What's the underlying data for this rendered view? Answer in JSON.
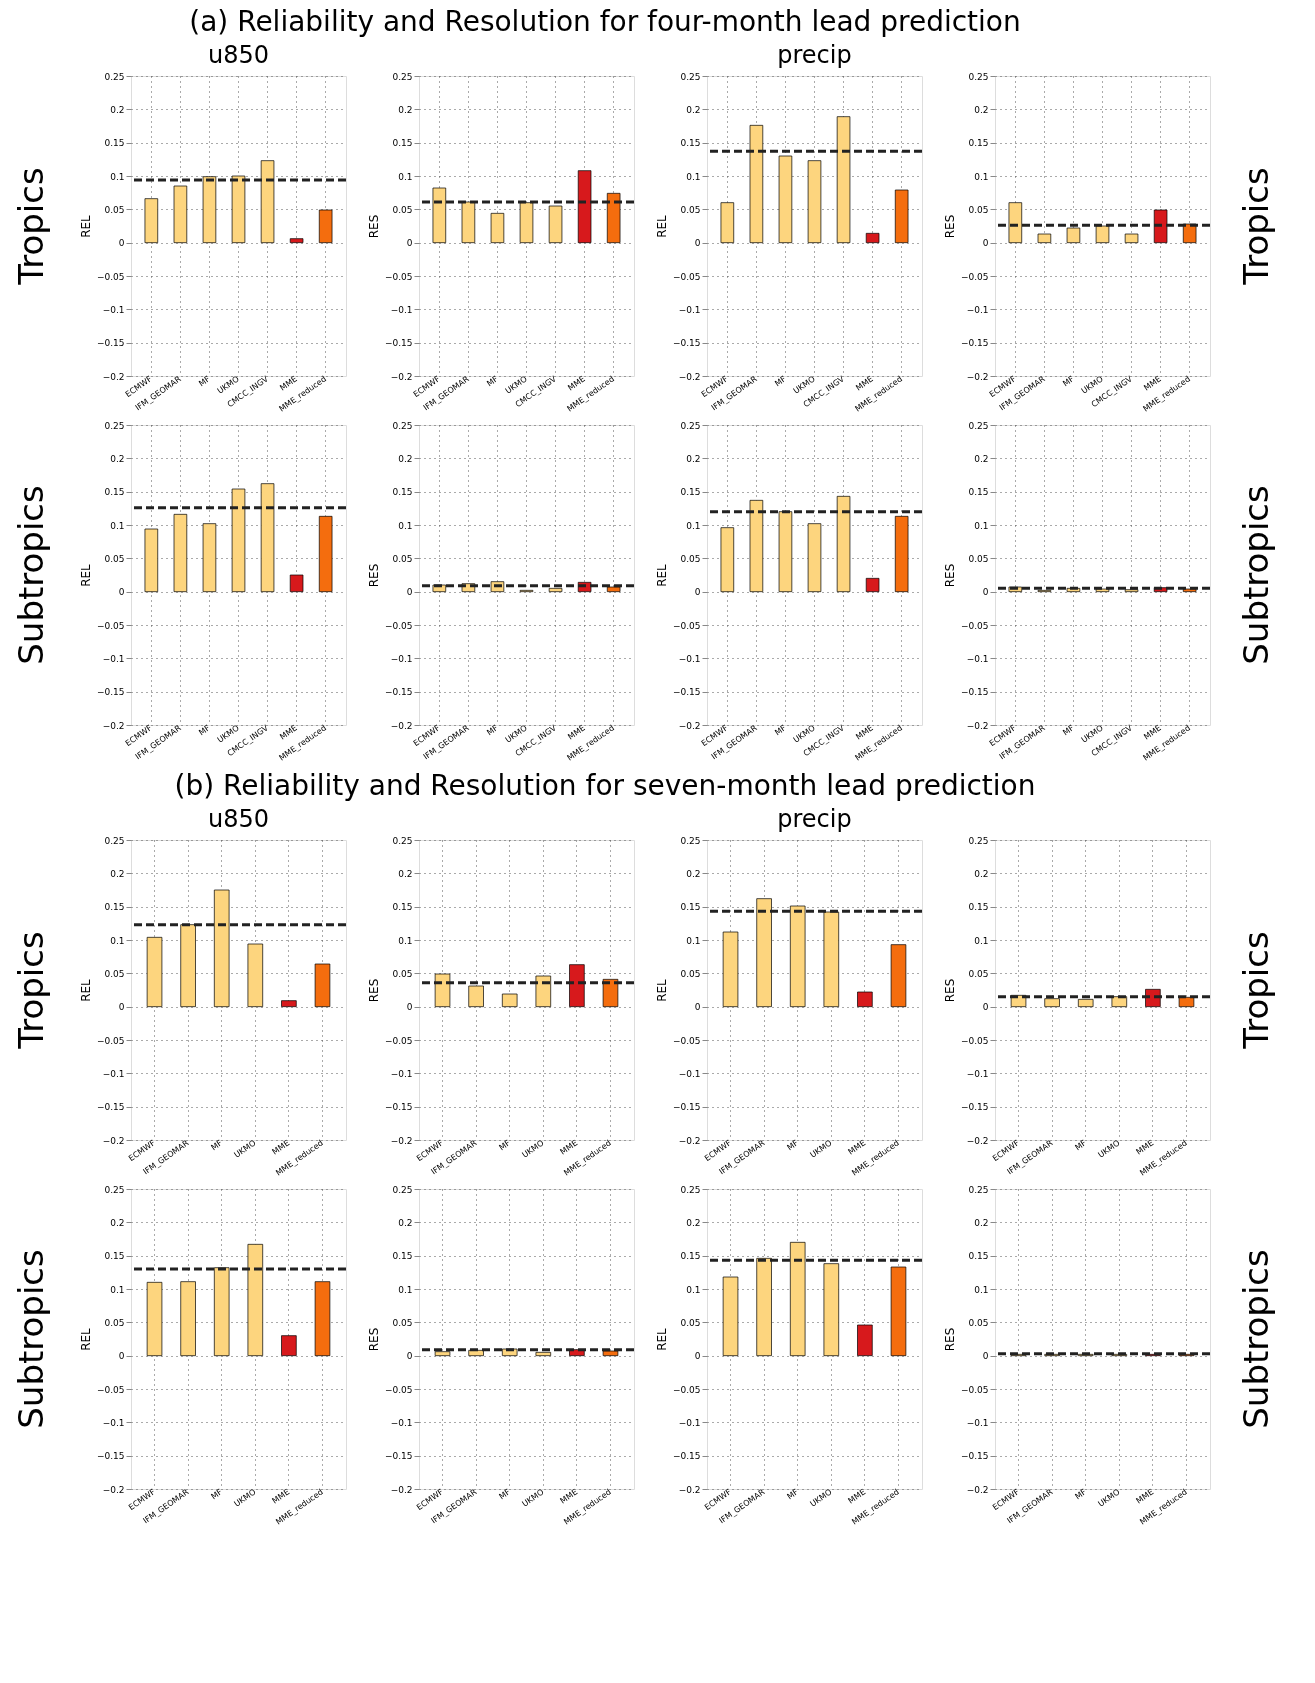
{
  "chart_data": [
    {
      "type": "bar",
      "title": "u850",
      "annotations": [
        "(a) Reliability and Resolution for four-month lead prediction",
        "Tropics"
      ],
      "ylabel": "REL",
      "categories": [
        "ECMWF",
        "IFM_GEOMAR",
        "MF",
        "UKMO",
        "CMCC_INGV",
        "MME",
        "MME_reduced"
      ],
      "values": [
        0.066,
        0.085,
        0.099,
        0.1,
        0.123,
        0.006,
        0.049
      ],
      "colors": [
        "#fdd57e",
        "#fdd57e",
        "#fdd57e",
        "#fdd57e",
        "#fdd57e",
        "#d7191c",
        "#f46d0e"
      ],
      "ylim": [
        -0.2,
        0.25
      ],
      "yticks": [
        -0.2,
        -0.15,
        -0.1,
        -0.05,
        0,
        0.05,
        0.1,
        0.15,
        0.2,
        0.25
      ],
      "grid": true,
      "ref_lines": [
        {
          "axis": "y",
          "value": 0.094,
          "color": "#222222",
          "line_style": "dashed"
        }
      ]
    },
    {
      "type": "bar",
      "ylabel": "RES",
      "categories": [
        "ECMWF",
        "IFM_GEOMAR",
        "MF",
        "UKMO",
        "CMCC_INGV",
        "MME",
        "MME_reduced"
      ],
      "values": [
        0.082,
        0.061,
        0.044,
        0.06,
        0.055,
        0.108,
        0.074
      ],
      "colors": [
        "#fdd57e",
        "#fdd57e",
        "#fdd57e",
        "#fdd57e",
        "#fdd57e",
        "#d7191c",
        "#f46d0e"
      ],
      "ylim": [
        -0.2,
        0.25
      ],
      "yticks": [
        -0.2,
        -0.15,
        -0.1,
        -0.05,
        0,
        0.05,
        0.1,
        0.15,
        0.2,
        0.25
      ],
      "grid": true,
      "ref_lines": [
        {
          "axis": "y",
          "value": 0.061,
          "color": "#222222",
          "line_style": "dashed"
        }
      ]
    },
    {
      "type": "bar",
      "title": "precip",
      "ylabel": "REL",
      "categories": [
        "ECMWF",
        "IFM_GEOMAR",
        "MF",
        "UKMO",
        "CMCC_INGV",
        "MME",
        "MME_reduced"
      ],
      "values": [
        0.06,
        0.176,
        0.13,
        0.123,
        0.189,
        0.014,
        0.079
      ],
      "colors": [
        "#fdd57e",
        "#fdd57e",
        "#fdd57e",
        "#fdd57e",
        "#fdd57e",
        "#d7191c",
        "#f46d0e"
      ],
      "ylim": [
        -0.2,
        0.25
      ],
      "yticks": [
        -0.2,
        -0.15,
        -0.1,
        -0.05,
        0,
        0.05,
        0.1,
        0.15,
        0.2,
        0.25
      ],
      "grid": true,
      "ref_lines": [
        {
          "axis": "y",
          "value": 0.137,
          "color": "#222222",
          "line_style": "dashed"
        }
      ]
    },
    {
      "type": "bar",
      "annotations": [
        "Tropics"
      ],
      "ylabel": "RES",
      "categories": [
        "ECMWF",
        "IFM_GEOMAR",
        "MF",
        "UKMO",
        "CMCC_INGV",
        "MME",
        "MME_reduced"
      ],
      "values": [
        0.06,
        0.013,
        0.022,
        0.025,
        0.013,
        0.049,
        0.028
      ],
      "colors": [
        "#fdd57e",
        "#fdd57e",
        "#fdd57e",
        "#fdd57e",
        "#fdd57e",
        "#d7191c",
        "#f46d0e"
      ],
      "ylim": [
        -0.2,
        0.25
      ],
      "yticks": [
        -0.2,
        -0.15,
        -0.1,
        -0.05,
        0,
        0.05,
        0.1,
        0.15,
        0.2,
        0.25
      ],
      "grid": true,
      "ref_lines": [
        {
          "axis": "y",
          "value": 0.026,
          "color": "#222222",
          "line_style": "dashed"
        }
      ]
    },
    {
      "type": "bar",
      "annotations": [
        "Subtropics"
      ],
      "ylabel": "REL",
      "categories": [
        "ECMWF",
        "IFM_GEOMAR",
        "MF",
        "UKMO",
        "CMCC_INGV",
        "MME",
        "MME_reduced"
      ],
      "values": [
        0.094,
        0.116,
        0.102,
        0.154,
        0.162,
        0.025,
        0.113
      ],
      "colors": [
        "#fdd57e",
        "#fdd57e",
        "#fdd57e",
        "#fdd57e",
        "#fdd57e",
        "#d7191c",
        "#f46d0e"
      ],
      "ylim": [
        -0.2,
        0.25
      ],
      "yticks": [
        -0.2,
        -0.15,
        -0.1,
        -0.05,
        0,
        0.05,
        0.1,
        0.15,
        0.2,
        0.25
      ],
      "grid": true,
      "ref_lines": [
        {
          "axis": "y",
          "value": 0.126,
          "color": "#222222",
          "line_style": "dashed"
        }
      ]
    },
    {
      "type": "bar",
      "ylabel": "RES",
      "categories": [
        "ECMWF",
        "IFM_GEOMAR",
        "MF",
        "UKMO",
        "CMCC_INGV",
        "MME",
        "MME_reduced"
      ],
      "values": [
        0.01,
        0.012,
        0.015,
        0.002,
        0.005,
        0.014,
        0.007
      ],
      "colors": [
        "#fdd57e",
        "#fdd57e",
        "#fdd57e",
        "#fdd57e",
        "#fdd57e",
        "#d7191c",
        "#f46d0e"
      ],
      "ylim": [
        -0.2,
        0.25
      ],
      "yticks": [
        -0.2,
        -0.15,
        -0.1,
        -0.05,
        0,
        0.05,
        0.1,
        0.15,
        0.2,
        0.25
      ],
      "grid": true,
      "ref_lines": [
        {
          "axis": "y",
          "value": 0.009,
          "color": "#222222",
          "line_style": "dashed"
        }
      ]
    },
    {
      "type": "bar",
      "ylabel": "REL",
      "categories": [
        "ECMWF",
        "IFM_GEOMAR",
        "MF",
        "UKMO",
        "CMCC_INGV",
        "MME",
        "MME_reduced"
      ],
      "values": [
        0.096,
        0.137,
        0.12,
        0.102,
        0.143,
        0.02,
        0.113
      ],
      "colors": [
        "#fdd57e",
        "#fdd57e",
        "#fdd57e",
        "#fdd57e",
        "#fdd57e",
        "#d7191c",
        "#f46d0e"
      ],
      "ylim": [
        -0.2,
        0.25
      ],
      "yticks": [
        -0.2,
        -0.15,
        -0.1,
        -0.05,
        0,
        0.05,
        0.1,
        0.15,
        0.2,
        0.25
      ],
      "grid": true,
      "ref_lines": [
        {
          "axis": "y",
          "value": 0.12,
          "color": "#222222",
          "line_style": "dashed"
        }
      ]
    },
    {
      "type": "bar",
      "annotations": [
        "Subtropics"
      ],
      "ylabel": "RES",
      "categories": [
        "ECMWF",
        "IFM_GEOMAR",
        "MF",
        "UKMO",
        "CMCC_INGV",
        "MME",
        "MME_reduced"
      ],
      "values": [
        0.007,
        0.002,
        0.005,
        0.004,
        0.003,
        0.006,
        0.004
      ],
      "colors": [
        "#fdd57e",
        "#fdd57e",
        "#fdd57e",
        "#fdd57e",
        "#fdd57e",
        "#d7191c",
        "#f46d0e"
      ],
      "ylim": [
        -0.2,
        0.25
      ],
      "yticks": [
        -0.2,
        -0.15,
        -0.1,
        -0.05,
        0,
        0.05,
        0.1,
        0.15,
        0.2,
        0.25
      ],
      "grid": true,
      "ref_lines": [
        {
          "axis": "y",
          "value": 0.005,
          "color": "#222222",
          "line_style": "dashed"
        }
      ]
    },
    {
      "type": "bar",
      "title": "u850",
      "annotations": [
        "(b) Reliability and Resolution for seven-month lead prediction",
        "Tropics"
      ],
      "ylabel": "REL",
      "categories": [
        "ECMWF",
        "IFM_GEOMAR",
        "MF",
        "UKMO",
        "MME",
        "MME_reduced"
      ],
      "values": [
        0.104,
        0.123,
        0.175,
        0.094,
        0.009,
        0.064
      ],
      "colors": [
        "#fdd57e",
        "#fdd57e",
        "#fdd57e",
        "#fdd57e",
        "#d7191c",
        "#f46d0e"
      ],
      "ylim": [
        -0.2,
        0.25
      ],
      "yticks": [
        -0.2,
        -0.15,
        -0.1,
        -0.05,
        0,
        0.05,
        0.1,
        0.15,
        0.2,
        0.25
      ],
      "grid": true,
      "ref_lines": [
        {
          "axis": "y",
          "value": 0.123,
          "color": "#222222",
          "line_style": "dashed"
        }
      ]
    },
    {
      "type": "bar",
      "ylabel": "RES",
      "categories": [
        "ECMWF",
        "IFM_GEOMAR",
        "MF",
        "UKMO",
        "MME",
        "MME_reduced"
      ],
      "values": [
        0.049,
        0.031,
        0.019,
        0.046,
        0.063,
        0.041
      ],
      "colors": [
        "#fdd57e",
        "#fdd57e",
        "#fdd57e",
        "#fdd57e",
        "#d7191c",
        "#f46d0e"
      ],
      "ylim": [
        -0.2,
        0.25
      ],
      "yticks": [
        -0.2,
        -0.15,
        -0.1,
        -0.05,
        0,
        0.05,
        0.1,
        0.15,
        0.2,
        0.25
      ],
      "grid": true,
      "ref_lines": [
        {
          "axis": "y",
          "value": 0.036,
          "color": "#222222",
          "line_style": "dashed"
        }
      ]
    },
    {
      "type": "bar",
      "title": "precip",
      "ylabel": "REL",
      "categories": [
        "ECMWF",
        "IFM_GEOMAR",
        "MF",
        "UKMO",
        "MME",
        "MME_reduced"
      ],
      "values": [
        0.112,
        0.162,
        0.151,
        0.142,
        0.022,
        0.093
      ],
      "colors": [
        "#fdd57e",
        "#fdd57e",
        "#fdd57e",
        "#fdd57e",
        "#d7191c",
        "#f46d0e"
      ],
      "ylim": [
        -0.2,
        0.25
      ],
      "yticks": [
        -0.2,
        -0.15,
        -0.1,
        -0.05,
        0,
        0.05,
        0.1,
        0.15,
        0.2,
        0.25
      ],
      "grid": true,
      "ref_lines": [
        {
          "axis": "y",
          "value": 0.143,
          "color": "#222222",
          "line_style": "dashed"
        }
      ]
    },
    {
      "type": "bar",
      "annotations": [
        "Tropics"
      ],
      "ylabel": "RES",
      "categories": [
        "ECMWF",
        "IFM_GEOMAR",
        "MF",
        "UKMO",
        "MME",
        "MME_reduced"
      ],
      "values": [
        0.017,
        0.012,
        0.011,
        0.015,
        0.026,
        0.014
      ],
      "colors": [
        "#fdd57e",
        "#fdd57e",
        "#fdd57e",
        "#fdd57e",
        "#d7191c",
        "#f46d0e"
      ],
      "ylim": [
        -0.2,
        0.25
      ],
      "yticks": [
        -0.2,
        -0.15,
        -0.1,
        -0.05,
        0,
        0.05,
        0.1,
        0.15,
        0.2,
        0.25
      ],
      "grid": true,
      "ref_lines": [
        {
          "axis": "y",
          "value": 0.015,
          "color": "#222222",
          "line_style": "dashed"
        }
      ]
    },
    {
      "type": "bar",
      "annotations": [
        "Subtropics"
      ],
      "ylabel": "REL",
      "categories": [
        "ECMWF",
        "IFM_GEOMAR",
        "MF",
        "UKMO",
        "MME",
        "MME_reduced"
      ],
      "values": [
        0.11,
        0.111,
        0.132,
        0.167,
        0.03,
        0.111
      ],
      "colors": [
        "#fdd57e",
        "#fdd57e",
        "#fdd57e",
        "#fdd57e",
        "#d7191c",
        "#f46d0e"
      ],
      "ylim": [
        -0.2,
        0.25
      ],
      "yticks": [
        -0.2,
        -0.15,
        -0.1,
        -0.05,
        0,
        0.05,
        0.1,
        0.15,
        0.2,
        0.25
      ],
      "grid": true,
      "ref_lines": [
        {
          "axis": "y",
          "value": 0.13,
          "color": "#222222",
          "line_style": "dashed"
        }
      ]
    },
    {
      "type": "bar",
      "ylabel": "RES",
      "categories": [
        "ECMWF",
        "IFM_GEOMAR",
        "MF",
        "UKMO",
        "MME",
        "MME_reduced"
      ],
      "values": [
        0.006,
        0.008,
        0.01,
        0.005,
        0.009,
        0.007
      ],
      "colors": [
        "#fdd57e",
        "#fdd57e",
        "#fdd57e",
        "#fdd57e",
        "#d7191c",
        "#f46d0e"
      ],
      "ylim": [
        -0.2,
        0.25
      ],
      "yticks": [
        -0.2,
        -0.15,
        -0.1,
        -0.05,
        0,
        0.05,
        0.1,
        0.15,
        0.2,
        0.25
      ],
      "grid": true,
      "ref_lines": [
        {
          "axis": "y",
          "value": 0.009,
          "color": "#222222",
          "line_style": "dashed"
        }
      ]
    },
    {
      "type": "bar",
      "ylabel": "REL",
      "categories": [
        "ECMWF",
        "IFM_GEOMAR",
        "MF",
        "UKMO",
        "MME",
        "MME_reduced"
      ],
      "values": [
        0.118,
        0.146,
        0.17,
        0.138,
        0.046,
        0.133
      ],
      "colors": [
        "#fdd57e",
        "#fdd57e",
        "#fdd57e",
        "#fdd57e",
        "#d7191c",
        "#f46d0e"
      ],
      "ylim": [
        -0.2,
        0.25
      ],
      "yticks": [
        -0.2,
        -0.15,
        -0.1,
        -0.05,
        0,
        0.05,
        0.1,
        0.15,
        0.2,
        0.25
      ],
      "grid": true,
      "ref_lines": [
        {
          "axis": "y",
          "value": 0.143,
          "color": "#222222",
          "line_style": "dashed"
        }
      ]
    },
    {
      "type": "bar",
      "annotations": [
        "Subtropics"
      ],
      "ylabel": "RES",
      "categories": [
        "ECMWF",
        "IFM_GEOMAR",
        "MF",
        "UKMO",
        "MME",
        "MME_reduced"
      ],
      "values": [
        0.002,
        0.002,
        0.002,
        0.002,
        0.002,
        0.002
      ],
      "colors": [
        "#fdd57e",
        "#fdd57e",
        "#fdd57e",
        "#fdd57e",
        "#d7191c",
        "#f46d0e"
      ],
      "ylim": [
        -0.2,
        0.25
      ],
      "yticks": [
        -0.2,
        -0.15,
        -0.1,
        -0.05,
        0,
        0.05,
        0.1,
        0.15,
        0.2,
        0.25
      ],
      "grid": true,
      "ref_lines": [
        {
          "axis": "y",
          "value": 0.003,
          "color": "#222222",
          "line_style": "dashed"
        }
      ]
    }
  ]
}
